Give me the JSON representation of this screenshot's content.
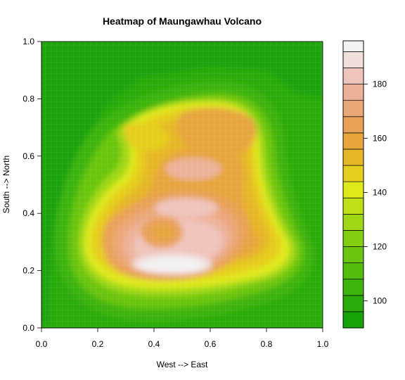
{
  "chart_data": {
    "type": "heatmap",
    "title": "Heatmap of Maungawhau Volcano",
    "xlabel": "West --> East",
    "ylabel": "South --> North",
    "xlim": [
      0,
      1
    ],
    "ylim": [
      0,
      1
    ],
    "x_ticks": [
      "0.0",
      "0.2",
      "0.4",
      "0.6",
      "0.8",
      "1.0"
    ],
    "y_ticks": [
      "0.0",
      "0.2",
      "0.4",
      "0.6",
      "0.8",
      "1.0"
    ],
    "colorbar": {
      "range": [
        90,
        196
      ],
      "ticks": [
        "100",
        "120",
        "140",
        "160",
        "180"
      ],
      "colors": [
        "#16a30a",
        "#2aab0b",
        "#3eb40c",
        "#53bc0e",
        "#6bc510",
        "#84ce12",
        "#a0d715",
        "#bfe018",
        "#dee91b",
        "#e5ce1f",
        "#e5b728",
        "#e6a63c",
        "#e8a258",
        "#eaa878",
        "#ecb299",
        "#eec4bb",
        "#f0dfdc",
        "#f2f2f2"
      ],
      "levels": [
        90,
        96,
        102,
        108,
        114,
        120,
        126,
        132,
        138,
        144,
        150,
        156,
        162,
        168,
        174,
        180,
        186,
        192,
        196
      ]
    }
  }
}
